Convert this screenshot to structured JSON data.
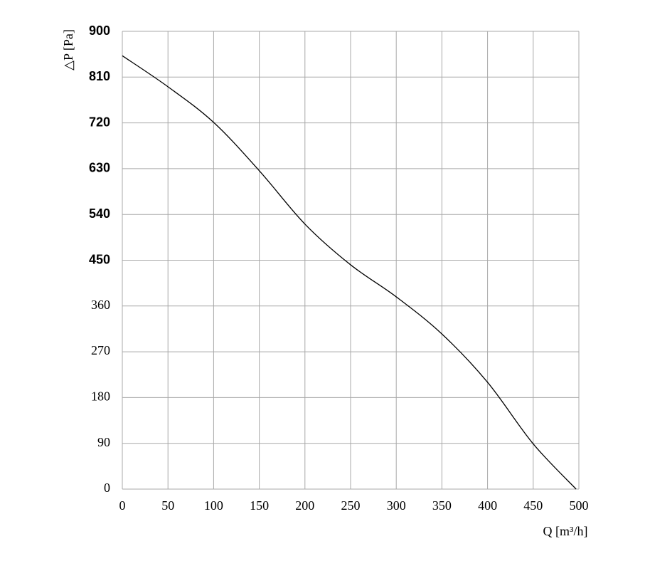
{
  "chart_data": {
    "type": "line",
    "y_label": "△P [Pa]",
    "x_label": "Q [m³/h]",
    "x": [
      0,
      50,
      100,
      150,
      200,
      250,
      300,
      350,
      400,
      450,
      497
    ],
    "values": [
      852,
      791,
      721,
      626,
      521,
      441,
      378,
      305,
      210,
      89,
      0
    ],
    "color": "#000000",
    "xlim": [
      0,
      500
    ],
    "xticks": [
      0,
      50,
      100,
      150,
      200,
      250,
      300,
      350,
      400,
      450,
      500
    ],
    "ylim": [
      0,
      900
    ],
    "yticks": [
      0,
      90,
      180,
      270,
      360,
      450,
      540,
      630,
      720,
      810,
      900
    ],
    "grid": true
  }
}
